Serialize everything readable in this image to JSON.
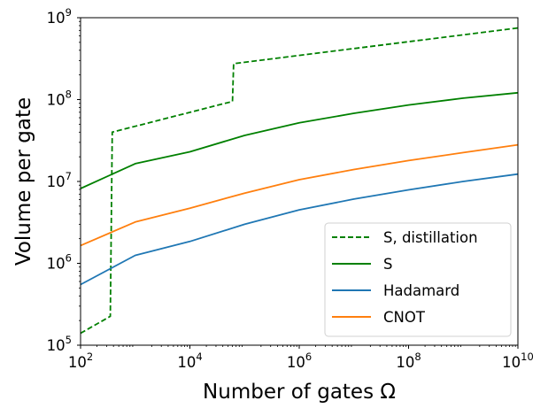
{
  "chart_data": {
    "type": "line",
    "title": "",
    "xlabel": "Number of gates Ω",
    "ylabel": "Volume per gate",
    "xscale": "log",
    "yscale": "log",
    "xlim": [
      100,
      10000000000
    ],
    "ylim": [
      100000,
      1000000000
    ],
    "x_ticks": [
      {
        "base": "10",
        "exp": "2",
        "value": 100
      },
      {
        "base": "10",
        "exp": "4",
        "value": 10000
      },
      {
        "base": "10",
        "exp": "6",
        "value": 1000000
      },
      {
        "base": "10",
        "exp": "8",
        "value": 100000000
      },
      {
        "base": "10",
        "exp": "10",
        "value": 10000000000
      }
    ],
    "y_ticks": [
      {
        "base": "10",
        "exp": "5",
        "value": 100000
      },
      {
        "base": "10",
        "exp": "6",
        "value": 1000000
      },
      {
        "base": "10",
        "exp": "7",
        "value": 10000000
      },
      {
        "base": "10",
        "exp": "8",
        "value": 100000000
      },
      {
        "base": "10",
        "exp": "9",
        "value": 1000000000
      }
    ],
    "legend_position": "lower-right",
    "grid": false,
    "series": [
      {
        "name": "S, distillation",
        "color": "#008000",
        "style": "dashed",
        "points": [
          [
            100,
            140000
          ],
          [
            350,
            225000
          ],
          [
            380,
            40000000
          ],
          [
            60000,
            95000000
          ],
          [
            63000,
            275000000
          ],
          [
            10000000000,
            750000000
          ]
        ]
      },
      {
        "name": "S",
        "color": "#008000",
        "style": "solid",
        "points": [
          [
            100,
            8200000
          ],
          [
            1000,
            16500000
          ],
          [
            10000,
            23000000
          ],
          [
            100000,
            36500000
          ],
          [
            1000000,
            52000000
          ],
          [
            10000000,
            68000000
          ],
          [
            100000000,
            86000000
          ],
          [
            1000000000,
            104000000
          ],
          [
            10000000000,
            121000000
          ]
        ]
      },
      {
        "name": "Hadamard",
        "color": "#1f77b4",
        "style": "solid",
        "points": [
          [
            100,
            550000
          ],
          [
            1000,
            1250000
          ],
          [
            10000,
            1850000
          ],
          [
            100000,
            3000000
          ],
          [
            1000000,
            4500000
          ],
          [
            10000000,
            6100000
          ],
          [
            100000000,
            7900000
          ],
          [
            1000000000,
            10000000
          ],
          [
            10000000000,
            12300000
          ]
        ]
      },
      {
        "name": "CNOT",
        "color": "#ff7f0e",
        "style": "solid",
        "points": [
          [
            100,
            1650000
          ],
          [
            1000,
            3200000
          ],
          [
            10000,
            4700000
          ],
          [
            100000,
            7200000
          ],
          [
            1000000,
            10500000
          ],
          [
            10000000,
            14000000
          ],
          [
            100000000,
            18000000
          ],
          [
            1000000000,
            22500000
          ],
          [
            10000000000,
            28000000
          ]
        ]
      }
    ]
  }
}
